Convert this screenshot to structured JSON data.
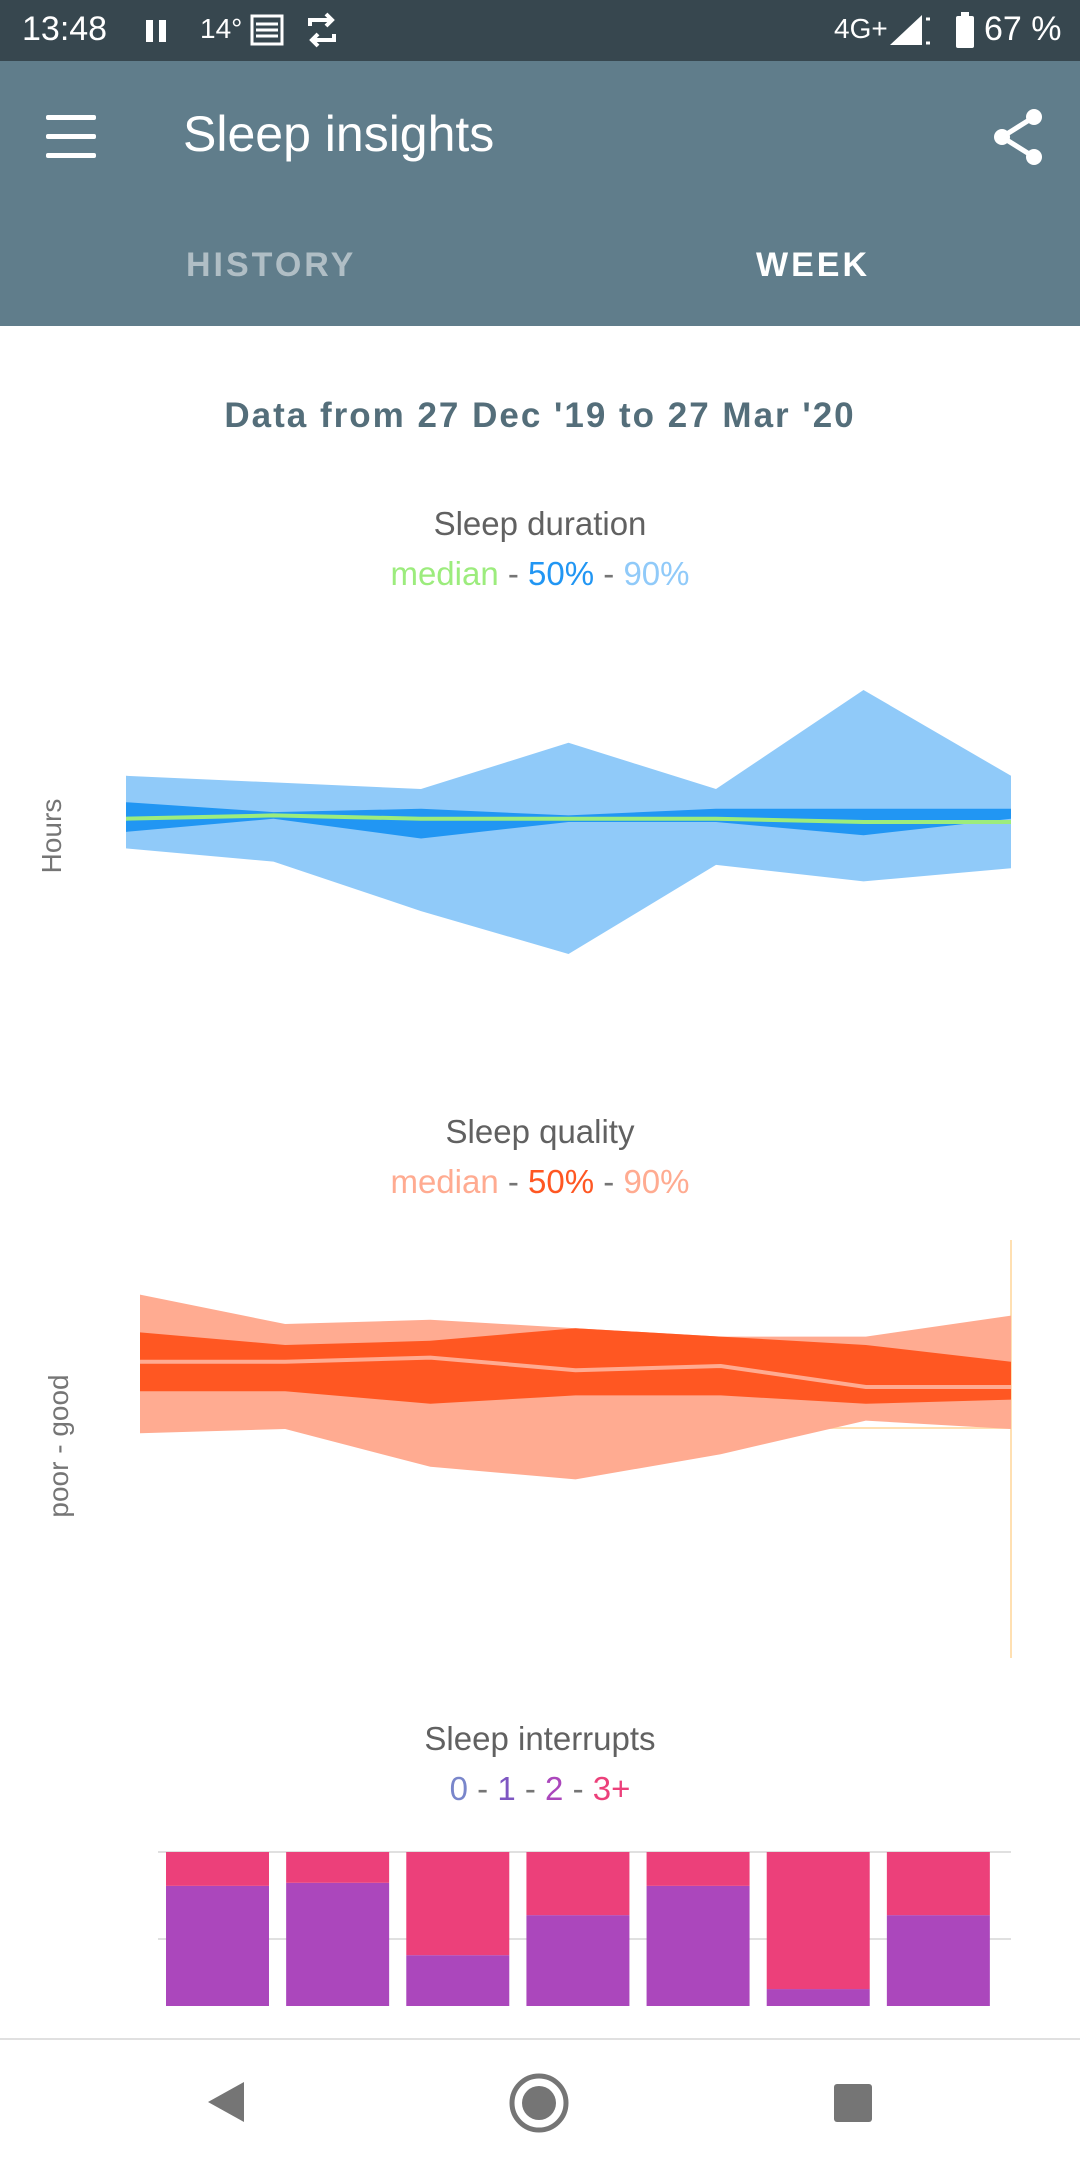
{
  "status_bar": {
    "time": "13:48",
    "temperature": "14°",
    "network": "4G+",
    "battery": "67 %",
    "icons": [
      "pause-icon",
      "weather-icon",
      "sync-icon",
      "signal-icon",
      "battery-icon"
    ]
  },
  "app_bar": {
    "title": "Sleep insights",
    "icons": [
      "menu-icon",
      "share-icon"
    ],
    "tabs": [
      {
        "label": "HISTORY",
        "active": false
      },
      {
        "label": "WEEK",
        "active": true
      }
    ]
  },
  "range_text": "Data from 27 Dec '19 to 27 Mar '20",
  "colors": {
    "header": "#607d8b",
    "status_bar": "#37474f",
    "duration_median": "#9cec7d",
    "duration_50": "#2196f3",
    "duration_90": "#90caf9",
    "quality_median": "#ffab91",
    "quality_50": "#ff5722",
    "quality_90": "#ffab91",
    "interrupts_0": "#7986cb",
    "interrupts_1": "#7e57c2",
    "interrupts_2": "#ab47bc",
    "interrupts_3plus": "#ec407a"
  },
  "charts": {
    "duration": {
      "title": "Sleep duration",
      "legend": {
        "median": "median",
        "p50": "50%",
        "p90": "90%",
        "sep": "-"
      },
      "ylabel": "Hours"
    },
    "quality": {
      "title": "Sleep quality",
      "legend": {
        "median": "median",
        "p50": "50%",
        "p90": "90%",
        "sep": "-"
      },
      "ylabel": "poor - good"
    },
    "interrupts": {
      "title": "Sleep interrupts",
      "legend": {
        "c0": "0",
        "c1": "1",
        "c2": "2",
        "c3": "3+",
        "sep": "-"
      }
    }
  },
  "chart_data": [
    {
      "type": "area",
      "title": "Sleep duration",
      "ylabel": "Hours",
      "x": [
        1,
        2,
        3,
        4,
        5,
        6,
        7
      ],
      "ylim": [
        0,
        1
      ],
      "series": [
        {
          "name": "90%",
          "upper": [
            0.74,
            0.72,
            0.7,
            0.84,
            0.7,
            1.0,
            0.74
          ],
          "lower": [
            0.52,
            0.48,
            0.33,
            0.2,
            0.47,
            0.42,
            0.46
          ]
        },
        {
          "name": "50%",
          "upper": [
            0.66,
            0.63,
            0.64,
            0.62,
            0.64,
            0.64,
            0.64
          ],
          "lower": [
            0.57,
            0.61,
            0.55,
            0.6,
            0.6,
            0.56,
            0.61
          ]
        },
        {
          "name": "median",
          "values": [
            0.61,
            0.62,
            0.61,
            0.61,
            0.61,
            0.6,
            0.6
          ]
        }
      ]
    },
    {
      "type": "area",
      "title": "Sleep quality",
      "ylabel": "poor - good",
      "x": [
        1,
        2,
        3,
        4,
        5,
        6,
        7
      ],
      "ylim": [
        0,
        1
      ],
      "series": [
        {
          "name": "90%",
          "upper": [
            0.87,
            0.8,
            0.81,
            0.79,
            0.77,
            0.77,
            0.82
          ],
          "lower": [
            0.54,
            0.55,
            0.46,
            0.43,
            0.49,
            0.57,
            0.55
          ]
        },
        {
          "name": "50%",
          "upper": [
            0.78,
            0.75,
            0.76,
            0.79,
            0.77,
            0.75,
            0.71
          ],
          "lower": [
            0.64,
            0.64,
            0.61,
            0.63,
            0.63,
            0.61,
            0.62
          ]
        },
        {
          "name": "median",
          "values": [
            0.71,
            0.71,
            0.72,
            0.69,
            0.7,
            0.65,
            0.65
          ]
        }
      ]
    },
    {
      "type": "bar",
      "title": "Sleep interrupts",
      "categories": [
        "1",
        "2",
        "3",
        "4",
        "5",
        "6",
        "7"
      ],
      "stacked": true,
      "ylim": [
        0,
        1
      ],
      "series": [
        {
          "name": "2",
          "values": [
            0.78,
            0.8,
            0.33,
            0.59,
            0.78,
            0.11,
            0.59
          ]
        },
        {
          "name": "3+",
          "values": [
            0.22,
            0.2,
            0.67,
            0.41,
            0.22,
            0.89,
            0.41
          ]
        }
      ]
    }
  ]
}
